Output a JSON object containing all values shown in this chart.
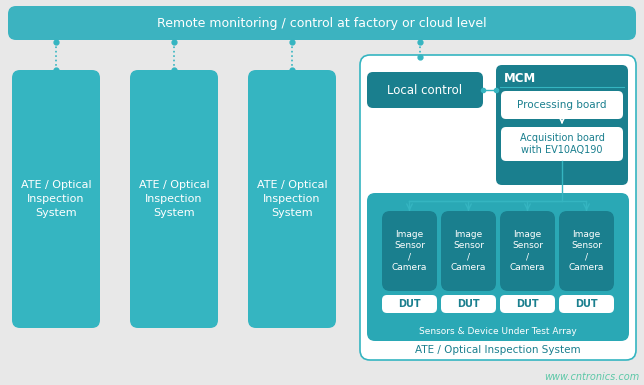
{
  "bg_color": "#e8e8e8",
  "teal_dark": "#1a7f8e",
  "teal_mid": "#35b5c1",
  "teal_banner": "#3cb3c0",
  "teal_sensor_panel": "#2aa8b5",
  "white": "#ffffff",
  "top_banner_text": "Remote monitoring / control at factory or cloud level",
  "ate_labels": [
    "ATE / Optical\nInspection\nSystem",
    "ATE / Optical\nInspection\nSystem",
    "ATE / Optical\nInspection\nSystem"
  ],
  "sensor_labels": [
    "Image\nSensor\n/\nCamera",
    "Image\nSensor\n/\nCamera",
    "Image\nSensor\n/\nCamera",
    "Image\nSensor\n/\nCamera"
  ],
  "dut_labels": [
    "DUT",
    "DUT",
    "DUT",
    "DUT"
  ],
  "local_control_text": "Local control",
  "mcm_text": "MCM",
  "processing_text": "Processing board",
  "acquisition_text": "Acquisition board\nwith EV10AQ190",
  "sensors_array_text": "Sensors & Device Under Test Array",
  "ate_system_text": "ATE / Optical Inspection System",
  "watermark": "www.cntronics.com"
}
